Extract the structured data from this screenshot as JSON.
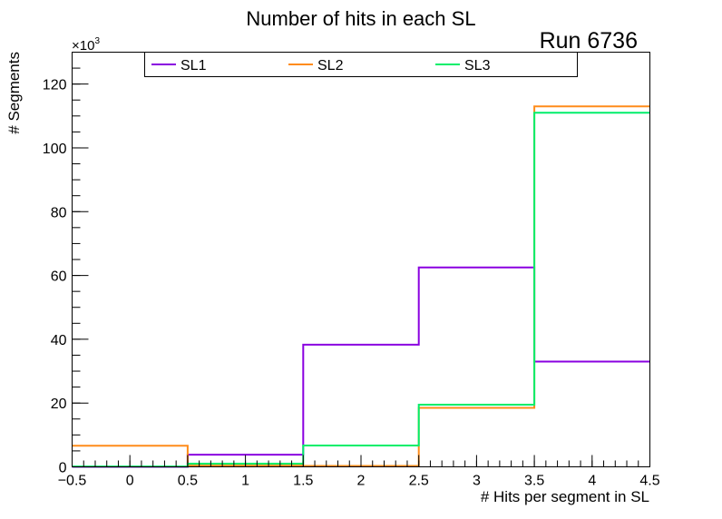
{
  "chart_data": {
    "type": "step",
    "title": "Number of hits in each SL",
    "annotation": "Run 6736",
    "xlabel": "# Hits per segment in SL",
    "ylabel": "# Segments",
    "y_multiplier_prefix": "×10",
    "y_multiplier_exponent": "3",
    "xlim": [
      -0.5,
      4.5
    ],
    "ylim": [
      0,
      130
    ],
    "x_ticks": [
      -0.5,
      0,
      0.5,
      1,
      1.5,
      2,
      2.5,
      3,
      3.5,
      4,
      4.5
    ],
    "x_tick_labels": [
      "−0.5",
      "0",
      "0.5",
      "1",
      "1.5",
      "2",
      "2.5",
      "3",
      "3.5",
      "4",
      "4.5"
    ],
    "y_ticks": [
      0,
      20,
      40,
      60,
      80,
      100,
      120
    ],
    "y_tick_labels": [
      "0",
      "20",
      "40",
      "60",
      "80",
      "100",
      "120"
    ],
    "bin_edges": [
      -0.5,
      0.5,
      1.5,
      2.5,
      3.5,
      4.5
    ],
    "series": [
      {
        "name": "SL1",
        "color": "#8a00e0",
        "values": [
          0,
          3.8,
          38.3,
          62.5,
          33.0
        ]
      },
      {
        "name": "SL2",
        "color": "#ff8c1a",
        "values": [
          6.6,
          0.4,
          0.3,
          18.5,
          113.0
        ]
      },
      {
        "name": "SL3",
        "color": "#00ee6a",
        "values": [
          0.1,
          1.0,
          6.7,
          19.5,
          111.0
        ]
      }
    ],
    "grid": false,
    "legend_position": "top"
  }
}
